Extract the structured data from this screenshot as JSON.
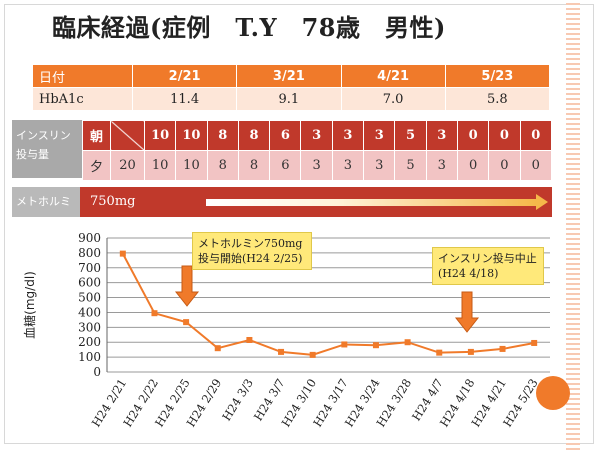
{
  "title": "臨床経過(症例　T.Y　78歳　男性)",
  "hba1c_table": {
    "header_label": "日付",
    "dates": [
      "2/21",
      "3/21",
      "4/21",
      "5/23"
    ],
    "row_label": "HbA1c",
    "values": [
      "11.4",
      "9.1",
      "7.0",
      "5.8"
    ]
  },
  "insulin": {
    "label_line1": "インスリン",
    "label_line2": "投与量",
    "morning_label": "朝",
    "morning_values": [
      "10",
      "10",
      "8",
      "8",
      "6",
      "3",
      "3",
      "3",
      "5",
      "3",
      "0",
      "0",
      "0"
    ],
    "evening_label": "夕",
    "evening_values": [
      "20",
      "10",
      "10",
      "8",
      "8",
      "6",
      "3",
      "3",
      "3",
      "5",
      "3",
      "0",
      "0",
      "0"
    ]
  },
  "metformin": {
    "label": "メトホルミン",
    "dose": "750mg"
  },
  "annotations": {
    "note1_line1": "メトホルミン750mg",
    "note1_line2": "投与開始(H24 2/25)",
    "note2_line1": "インスリン投与中止",
    "note2_line2": "(H24 4/18)"
  },
  "colors": {
    "accent": "#f07a2a",
    "insulin_header": "#c0392b",
    "insulin_row": "#f2c4c4",
    "note": "#ffe97a"
  },
  "chart_data": {
    "type": "line",
    "ylabel": "血糖(mg/dl)",
    "ylim": [
      0,
      900
    ],
    "yticks": [
      0,
      100,
      200,
      300,
      400,
      500,
      600,
      700,
      800,
      900
    ],
    "categories": [
      "H24 2/21",
      "H24 2/22",
      "H24 2/25",
      "H24 2/29",
      "H24 3/3",
      "H24 3/7",
      "H24 3/10",
      "H24 3/17",
      "H24 3/24",
      "H24 3/28",
      "H24 4/7",
      "H24 4/18",
      "H24 4/21",
      "H24 5/23"
    ],
    "series": [
      {
        "values": [
          795,
          395,
          335,
          160,
          215,
          135,
          115,
          185,
          180,
          200,
          130,
          135,
          155,
          195
        ]
      }
    ],
    "grid": true,
    "line_color": "#f07a2a"
  }
}
